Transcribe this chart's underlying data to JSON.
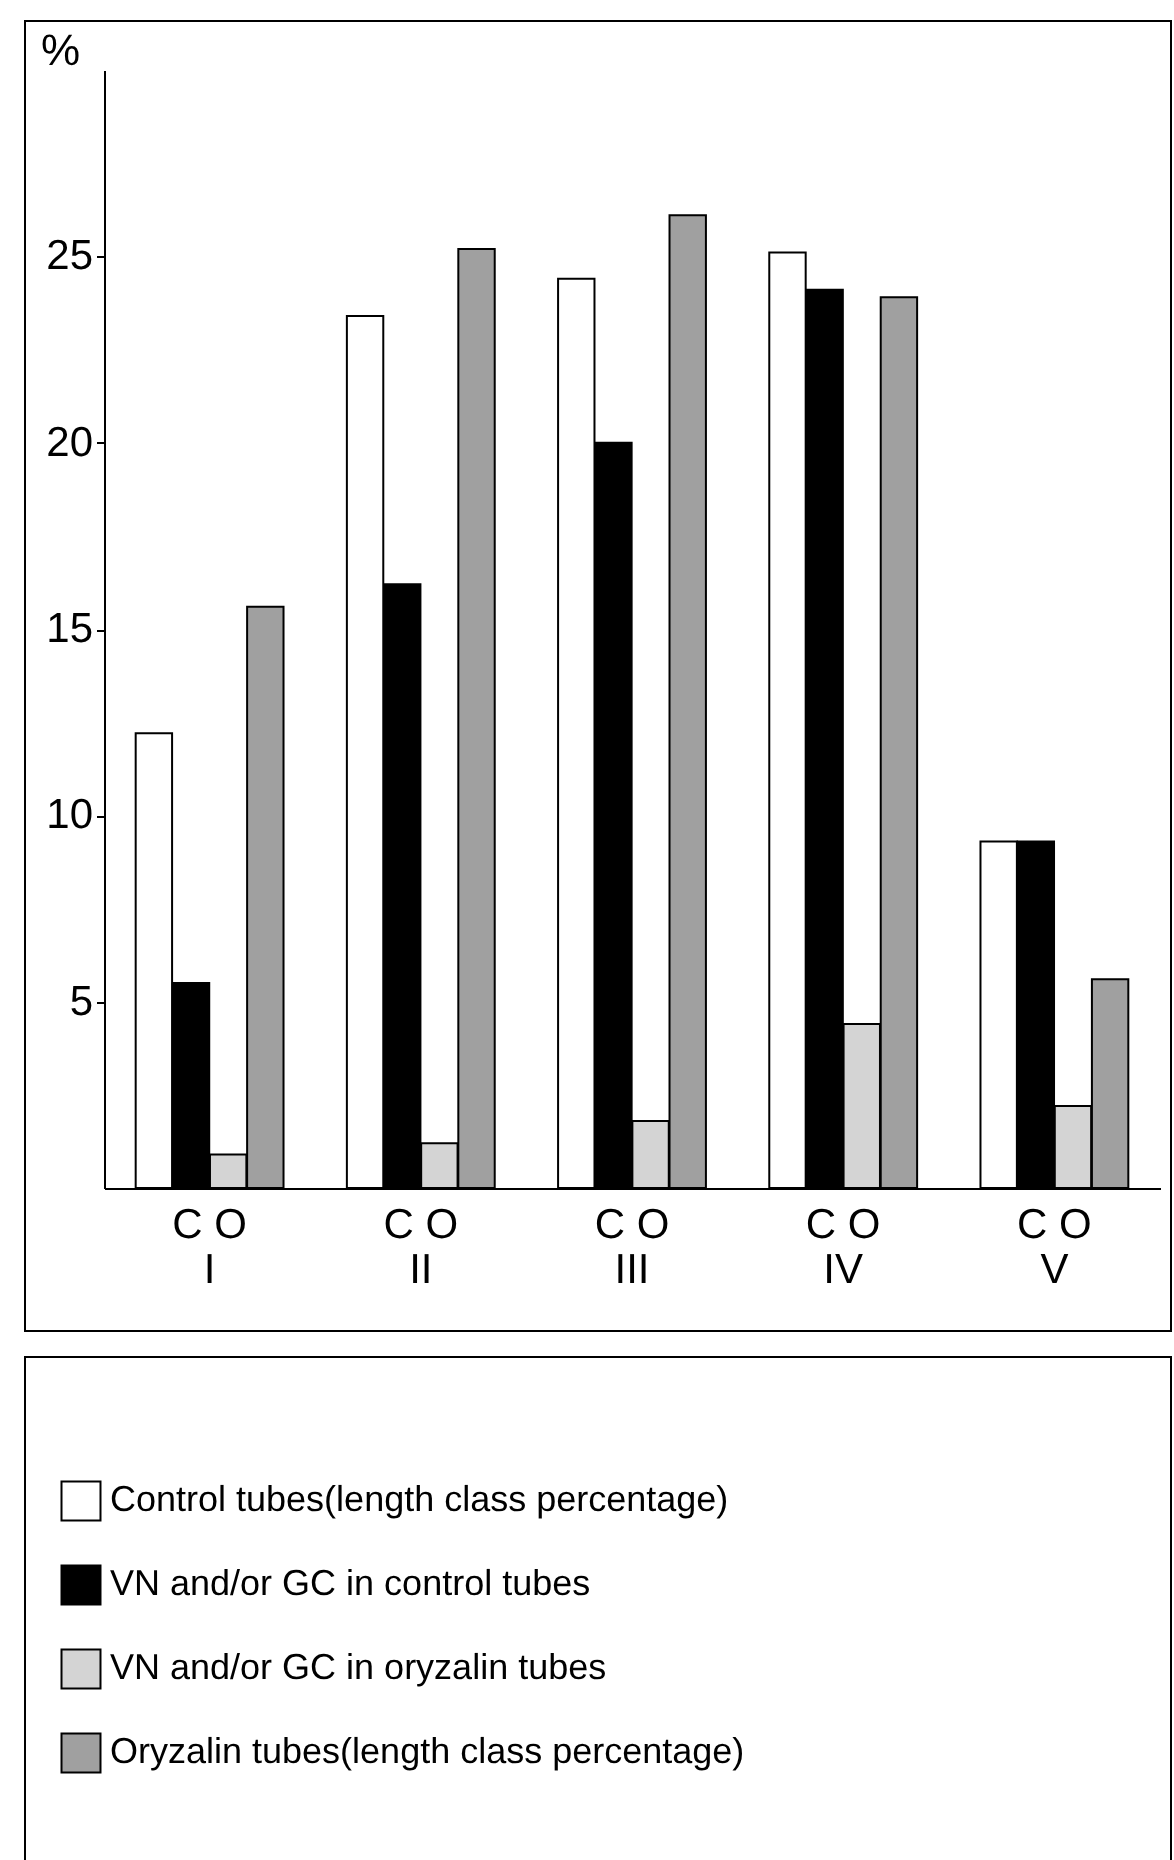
{
  "chart_data": {
    "type": "bar",
    "ylabel": "%",
    "categories": [
      "I",
      "II",
      "III",
      "IV",
      "V"
    ],
    "series": [
      {
        "name": "Control tubes(length class percentage)",
        "color": "#ffffff",
        "values": [
          12.2,
          23.4,
          24.4,
          25.1,
          9.3
        ]
      },
      {
        "name": "VN and/or GC in control tubes",
        "color": "#000000",
        "values": [
          5.5,
          16.2,
          20.0,
          24.1,
          9.3
        ]
      },
      {
        "name": "VN and/or GC in oryzalin tubes",
        "color": "#d4d4d4",
        "values": [
          0.9,
          1.2,
          1.8,
          4.4,
          2.2
        ]
      },
      {
        "name": "Oryzalin tubes(length class percentage)",
        "color": "#a0a0a0",
        "values": [
          15.6,
          25.2,
          26.1,
          23.9,
          5.6
        ]
      }
    ],
    "ylim": [
      0,
      30
    ],
    "yticks": [
      5,
      10,
      15,
      20,
      25
    ],
    "legend": "bottom",
    "annotations": [
      "C O",
      "C O",
      "C O",
      "C O",
      "C O"
    ]
  }
}
